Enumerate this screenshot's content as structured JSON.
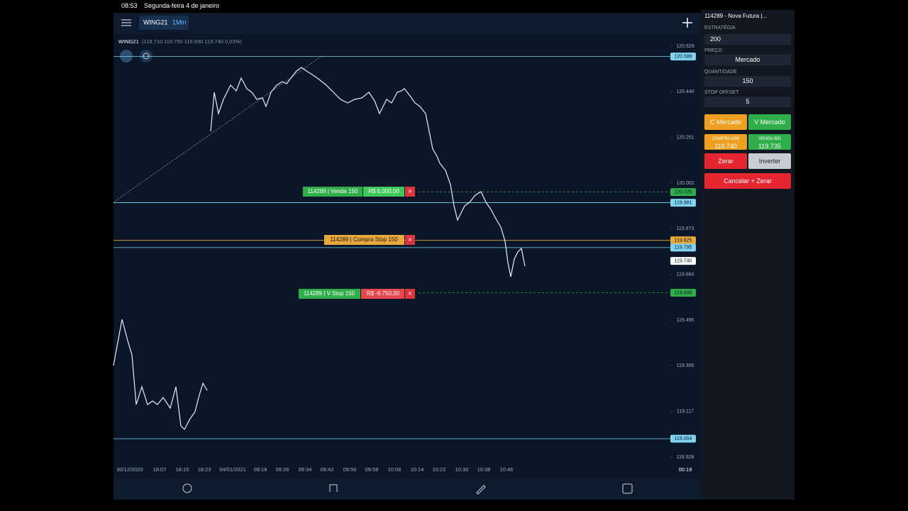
{
  "status_bar": {
    "time": "08:53",
    "date": "Segunda-feira 4 de janeiro"
  },
  "header": {
    "symbol": "WING21",
    "interval": "1Min"
  },
  "quote_line": {
    "symbol": "WING21",
    "values": "(119.710 119.750 119.690 119.740 0,03%)"
  },
  "price_axis": [
    {
      "value": 120.629,
      "label": "120.629"
    },
    {
      "value": 120.44,
      "label": "120.440"
    },
    {
      "value": 120.251,
      "label": "120.251"
    },
    {
      "value": 120.062,
      "label": "120.062"
    },
    {
      "value": 119.873,
      "label": "119.873"
    },
    {
      "value": 119.684,
      "label": "119.684"
    },
    {
      "value": 119.495,
      "label": "119.495"
    },
    {
      "value": 119.306,
      "label": "119.306"
    },
    {
      "value": 119.117,
      "label": "119.117"
    },
    {
      "value": 118.928,
      "label": "118.928"
    }
  ],
  "price_tags": [
    {
      "value": 120.586,
      "label": "120.586",
      "color": "#7fd3f0"
    },
    {
      "value": 120.025,
      "label": "120.025",
      "color": "#2fae4a"
    },
    {
      "value": 119.981,
      "label": "119.981",
      "color": "#7fd3f0"
    },
    {
      "value": 119.825,
      "label": "119.825",
      "color": "#e8a93a"
    },
    {
      "value": 119.795,
      "label": "119.795",
      "color": "#7fd3f0"
    },
    {
      "value": 119.74,
      "label": "119.740",
      "color": "#ffffff"
    },
    {
      "value": 119.608,
      "label": "119.608",
      "color": "#2fae4a"
    },
    {
      "value": 119.004,
      "label": "119.004",
      "color": "#7fd3f0"
    }
  ],
  "time_axis": [
    "30/12/2020",
    "18:07",
    "18:15",
    "18:23",
    "04/01/2021",
    "09:18",
    "09:26",
    "09:34",
    "09:42",
    "09:50",
    "09:58",
    "10:06",
    "10:14",
    "10:22",
    "10:30",
    "10:38",
    "10:46"
  ],
  "countdown": "00:19",
  "orders": [
    {
      "label": "114289 | Venda 150",
      "pnl": "R$ 6.000,00"
    },
    {
      "label": "114289 | Compra Stop 150"
    },
    {
      "label": "114289 | V Stop 150",
      "pnl": "R$ -6.750,00"
    }
  ],
  "panel": {
    "account": "114289 - Nova Futura |...",
    "strategy_label": "ESTRATÉGIA",
    "strategy": "200",
    "price_label": "PREÇO",
    "price": "Mercado",
    "qty_label": "QUANTIDADE",
    "qty": "150",
    "offset_label": "STOP OFFSET",
    "offset": "5",
    "buy_market": "C Mercado",
    "sell_market": "V Mercado",
    "ask_label": "COMPRA ASK",
    "ask": "119.740",
    "bid_label": "VENDA BID",
    "bid": "119.735",
    "zero": "Zerar",
    "invert": "Inverter",
    "cancel_zero": "Cancelar + Zerar"
  }
}
